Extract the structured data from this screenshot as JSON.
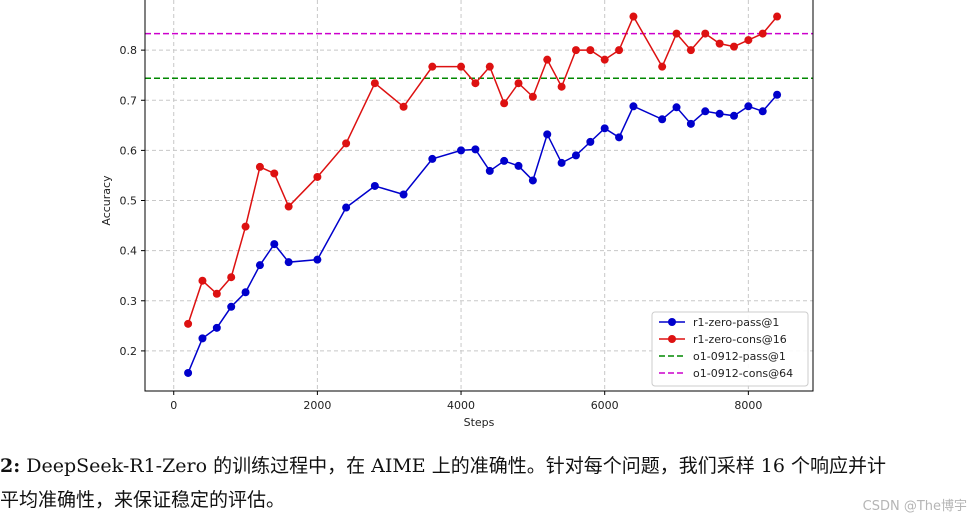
{
  "chart_data": {
    "type": "line",
    "xlabel": "Steps",
    "ylabel": "Accuracy",
    "xlim": [
      -400,
      8900
    ],
    "ylim": [
      0.12,
      0.9
    ],
    "xticks": [
      0,
      2000,
      4000,
      6000,
      8000
    ],
    "yticks": [
      0.2,
      0.3,
      0.4,
      0.5,
      0.6,
      0.7,
      0.8
    ],
    "xtick_labels": [
      "0",
      "2000",
      "4000",
      "6000",
      "8000"
    ],
    "ytick_labels": [
      "0.2",
      "0.3",
      "0.4",
      "0.5",
      "0.6",
      "0.7",
      "0.8"
    ],
    "grid": true,
    "legend_position": "bottom-right",
    "series": [
      {
        "name": "r1-zero-pass@1",
        "color": "#0000cc",
        "style": "solid-marker",
        "x": [
          200,
          400,
          600,
          800,
          1000,
          1200,
          1400,
          1600,
          2000,
          2400,
          2800,
          3200,
          3600,
          4000,
          4200,
          4400,
          4600,
          4800,
          5000,
          5200,
          5400,
          5600,
          5800,
          6000,
          6200,
          6400,
          6800,
          7000,
          7200,
          7400,
          7600,
          7800,
          8000,
          8200,
          8400
        ],
        "y": [
          0.156,
          0.225,
          0.246,
          0.288,
          0.317,
          0.371,
          0.413,
          0.377,
          0.382,
          0.486,
          0.529,
          0.512,
          0.583,
          0.6,
          0.602,
          0.559,
          0.579,
          0.569,
          0.54,
          0.632,
          0.575,
          0.59,
          0.617,
          0.644,
          0.626,
          0.688,
          0.662,
          0.686,
          0.653,
          0.678,
          0.673,
          0.669,
          0.688,
          0.678,
          0.711
        ]
      },
      {
        "name": "r1-zero-cons@16",
        "color": "#dd1111",
        "style": "solid-marker",
        "x": [
          200,
          400,
          600,
          800,
          1000,
          1200,
          1400,
          1600,
          2000,
          2400,
          2800,
          3200,
          3600,
          4000,
          4200,
          4400,
          4600,
          4800,
          5000,
          5200,
          5400,
          5600,
          5800,
          6000,
          6200,
          6400,
          6800,
          7000,
          7200,
          7400,
          7600,
          7800,
          8000,
          8200,
          8400
        ],
        "y": [
          0.254,
          0.34,
          0.314,
          0.347,
          0.448,
          0.567,
          0.554,
          0.488,
          0.547,
          0.614,
          0.734,
          0.687,
          0.767,
          0.767,
          0.734,
          0.767,
          0.694,
          0.734,
          0.707,
          0.781,
          0.727,
          0.8,
          0.8,
          0.781,
          0.8,
          0.867,
          0.767,
          0.833,
          0.8,
          0.833,
          0.813,
          0.807,
          0.82,
          0.833,
          0.867
        ]
      },
      {
        "name": "o1-0912-pass@1",
        "color": "#008800",
        "style": "dashed",
        "value": 0.744
      },
      {
        "name": "o1-0912-cons@64",
        "color": "#cc00cc",
        "style": "dashed",
        "value": 0.833
      }
    ]
  },
  "caption": {
    "line1_prefix": "2:",
    "line1_text": " DeepSeek-R1-Zero 的训练过程中，在 AIME 上的准确性。针对每个问题，我们采样 16 个响应并计",
    "line2_text": "平均准确性，来保证稳定的评估。"
  },
  "watermark": "CSDN @The博宇"
}
